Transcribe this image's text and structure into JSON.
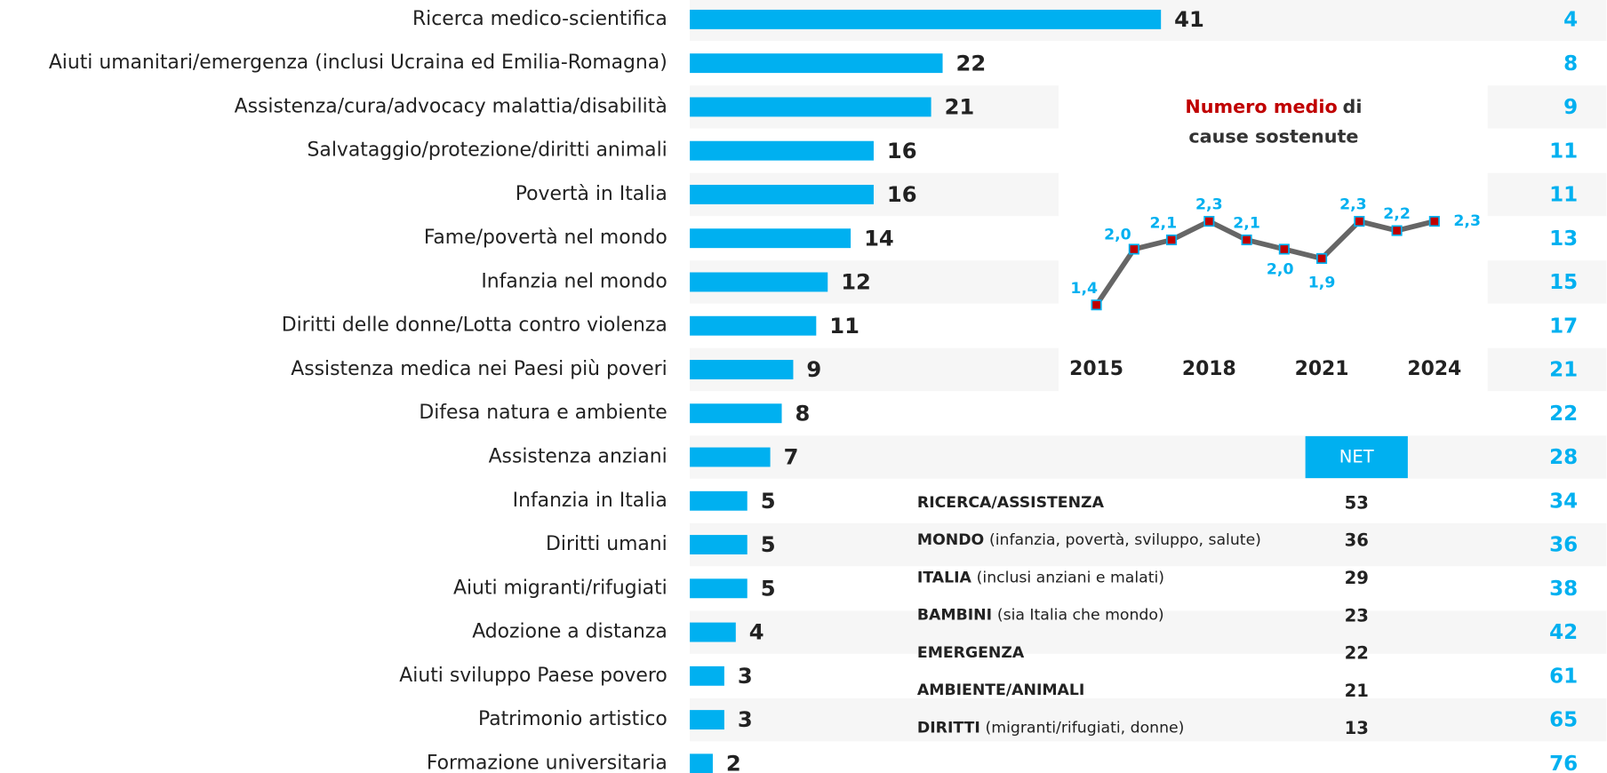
{
  "chart_data": [
    {
      "type": "bar",
      "categories": [
        "Ricerca medico-scientifica",
        "Aiuti umanitari/emergenza (inclusi Ucraina ed Emilia-Romagna)",
        "Assistenza/cura/advocacy malattia/disabilità",
        "Salvataggio/protezione/diritti animali",
        "Povertà in Italia",
        "Fame/povertà nel mondo",
        "Infanzia nel mondo",
        "Diritti delle donne/Lotta contro violenza",
        "Assistenza medica nei Paesi più poveri",
        "Difesa natura e ambiente",
        "Assistenza anziani",
        "Infanzia in Italia",
        "Diritti umani",
        "Aiuti migranti/rifugiati",
        "Adozione a distanza",
        "Aiuti sviluppo Paese povero",
        "Patrimonio artistico",
        "Formazione universitaria"
      ],
      "values": [
        41,
        22,
        21,
        16,
        16,
        14,
        12,
        11,
        9,
        8,
        7,
        5,
        5,
        5,
        4,
        3,
        3,
        2
      ],
      "color": "#00b0f0",
      "xlim": [
        0,
        50
      ]
    },
    {
      "type": "line",
      "title": {
        "highlight": "Numero medio",
        "line1": "di",
        "line2": "cause sostenute"
      },
      "x": [
        2015,
        2016,
        2017,
        2018,
        2019,
        2020,
        2021,
        2022,
        2023,
        2024
      ],
      "series": [
        {
          "color": "#666666",
          "marker_color": "#c00000",
          "values": [
            1.4,
            2.0,
            2.1,
            2.3,
            2.1,
            2.0,
            1.9,
            2.3,
            2.2,
            2.3
          ],
          "value_labels": [
            "1,4",
            "2,0",
            "2,1",
            "2,3",
            "2,1",
            "2,0",
            "1,9",
            "2,3",
            "2,2",
            "2,3"
          ]
        }
      ],
      "xlim": [
        2015,
        2024
      ],
      "xticks": [
        2015,
        2018,
        2021,
        2024
      ],
      "ylim": [
        1.2,
        2.5
      ]
    }
  ],
  "ranks": [
    4,
    8,
    9,
    11,
    11,
    13,
    15,
    17,
    21,
    22,
    28,
    34,
    36,
    38,
    42,
    61,
    65,
    76
  ],
  "table": {
    "header": "NET",
    "rows": [
      {
        "name": "RICERCA/ASSISTENZA",
        "detail": "",
        "value": 53
      },
      {
        "name": "MONDO",
        "detail": "(infanzia, povertà, sviluppo, salute)",
        "value": 36
      },
      {
        "name": "ITALIA",
        "detail": "(inclusi anziani e malati)",
        "value": 29
      },
      {
        "name": "BAMBINI",
        "detail": "(sia Italia che mondo)",
        "value": 23
      },
      {
        "name": "EMERGENZA",
        "detail": "",
        "value": 22
      },
      {
        "name": "AMBIENTE/ANIMALI",
        "detail": "",
        "value": 21
      },
      {
        "name": "DIRITTI",
        "detail": "(migranti/rifugiati, donne)",
        "value": 13
      }
    ]
  }
}
